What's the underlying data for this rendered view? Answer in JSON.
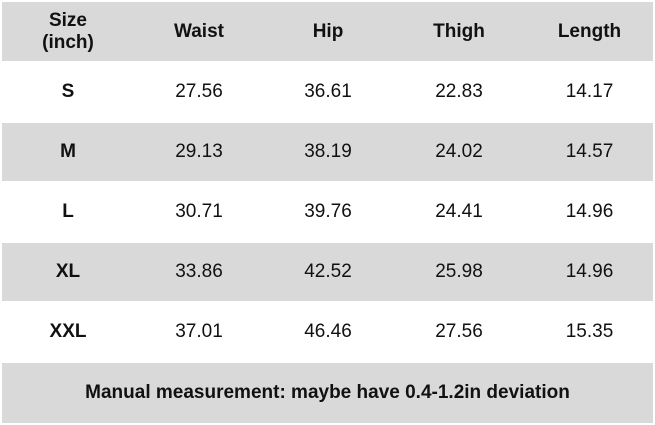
{
  "table": {
    "header": [
      "Size\n(inch)",
      "Waist",
      "Hip",
      "Thigh",
      "Length"
    ],
    "rows": [
      [
        "S",
        "27.56",
        "36.61",
        "22.83",
        "14.17"
      ],
      [
        "M",
        "29.13",
        "38.19",
        "24.02",
        "14.57"
      ],
      [
        "L",
        "30.71",
        "39.76",
        "24.41",
        "14.96"
      ],
      [
        "XL",
        "33.86",
        "42.52",
        "25.98",
        "14.96"
      ],
      [
        "XXL",
        "37.01",
        "46.46",
        "27.56",
        "15.35"
      ]
    ],
    "footer": "Manual measurement: maybe have 0.4-1.2in deviation"
  }
}
